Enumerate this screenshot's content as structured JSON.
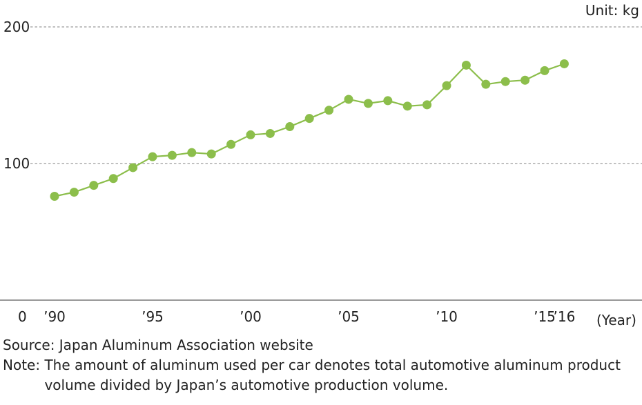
{
  "chart_data": {
    "type": "line",
    "unit_label": "Unit: kg",
    "xlabel": "(Year)",
    "ylabel": "",
    "ylim": [
      0,
      200
    ],
    "yticks": [
      "0",
      "100",
      "200"
    ],
    "grid": "dashed horizontal at 100 and 200",
    "x_tick_labels": [
      {
        "year": 1990,
        "label": "’90"
      },
      {
        "year": 1995,
        "label": "’95"
      },
      {
        "year": 2000,
        "label": "’00"
      },
      {
        "year": 2005,
        "label": "’05"
      },
      {
        "year": 2010,
        "label": "’10"
      },
      {
        "year": 2015,
        "label": "’15"
      },
      {
        "year": 2016,
        "label": "’16"
      }
    ],
    "series": [
      {
        "color": "#8cbe4b",
        "points": [
          {
            "x": 1990,
            "y": 76
          },
          {
            "x": 1991,
            "y": 79
          },
          {
            "x": 1992,
            "y": 84
          },
          {
            "x": 1993,
            "y": 89
          },
          {
            "x": 1994,
            "y": 97
          },
          {
            "x": 1995,
            "y": 105
          },
          {
            "x": 1996,
            "y": 106
          },
          {
            "x": 1997,
            "y": 108
          },
          {
            "x": 1998,
            "y": 107
          },
          {
            "x": 1999,
            "y": 114
          },
          {
            "x": 2000,
            "y": 121
          },
          {
            "x": 2001,
            "y": 122
          },
          {
            "x": 2002,
            "y": 127
          },
          {
            "x": 2003,
            "y": 133
          },
          {
            "x": 2004,
            "y": 139
          },
          {
            "x": 2005,
            "y": 147
          },
          {
            "x": 2006,
            "y": 144
          },
          {
            "x": 2007,
            "y": 146
          },
          {
            "x": 2008,
            "y": 142
          },
          {
            "x": 2009,
            "y": 143
          },
          {
            "x": 2010,
            "y": 157
          },
          {
            "x": 2011,
            "y": 172
          },
          {
            "x": 2012,
            "y": 158
          },
          {
            "x": 2013,
            "y": 160
          },
          {
            "x": 2014,
            "y": 161
          },
          {
            "x": 2015,
            "y": 168
          },
          {
            "x": 2016,
            "y": 173
          }
        ]
      }
    ]
  },
  "footnotes": {
    "source": "Source: Japan Aluminum Association website",
    "note_label": "Note: ",
    "note_text": "The amount of aluminum used per car denotes total automotive aluminum product volume divided by Japan’s automotive production volume."
  }
}
